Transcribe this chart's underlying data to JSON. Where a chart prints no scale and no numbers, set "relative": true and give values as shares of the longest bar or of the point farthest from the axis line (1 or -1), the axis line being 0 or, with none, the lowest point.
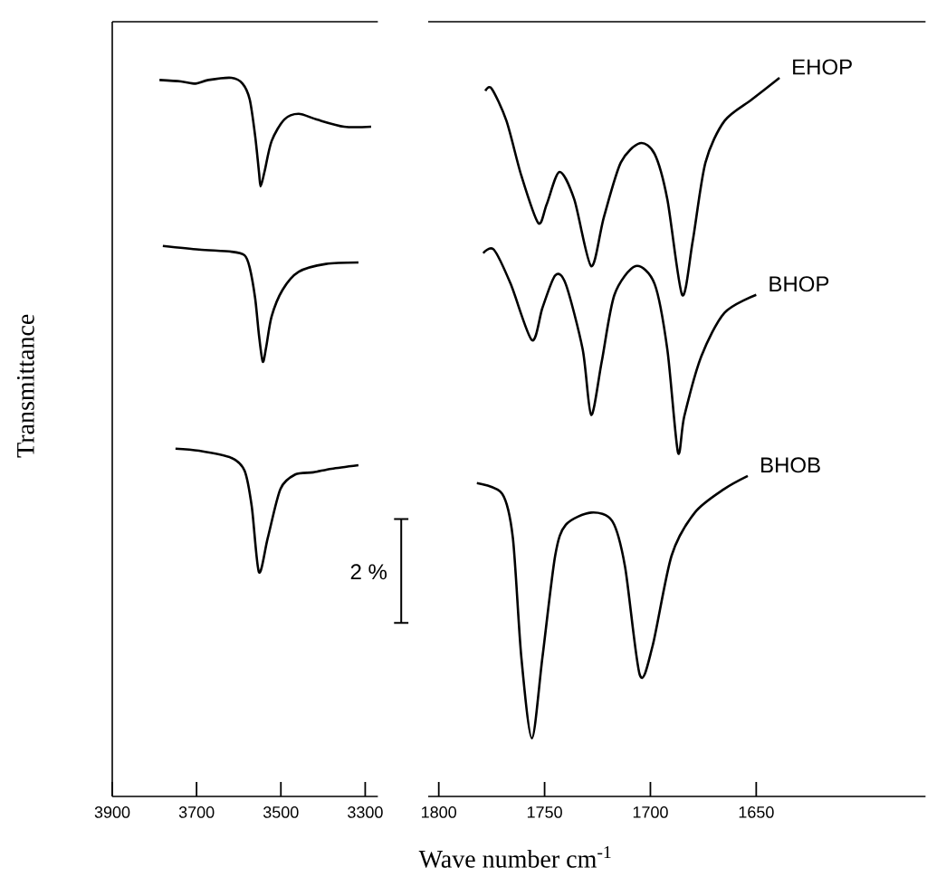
{
  "chart_data": [
    {
      "type": "line",
      "relative": true,
      "ylabel": "Transmittance",
      "xlim": [
        3900,
        3270
      ],
      "xticks": [
        3900,
        3700,
        3500,
        3300
      ],
      "annotations": [
        "2 %"
      ],
      "series": [
        {
          "color": "#000000",
          "x": [
            3788,
            3737,
            3702,
            3672,
            3617,
            3591,
            3574,
            3561,
            3552,
            3548,
            3539,
            3522,
            3492,
            3458,
            3415,
            3350,
            3286
          ],
          "values": [
            0.997,
            0.995,
            0.992,
            0.997,
            1.0,
            0.992,
            0.97,
            0.919,
            0.869,
            0.849,
            0.869,
            0.912,
            0.942,
            0.95,
            0.942,
            0.932,
            0.932
          ]
        },
        {
          "color": "#000000",
          "x": [
            3780,
            3694,
            3617,
            3586,
            3574,
            3561,
            3552,
            3543,
            3535,
            3522,
            3496,
            3458,
            3393,
            3316
          ],
          "values": [
            0.766,
            0.761,
            0.758,
            0.753,
            0.736,
            0.693,
            0.642,
            0.605,
            0.625,
            0.668,
            0.705,
            0.73,
            0.741,
            0.743
          ]
        },
        {
          "color": "#000000",
          "x": [
            3750,
            3694,
            3617,
            3586,
            3569,
            3552,
            3531,
            3501,
            3466,
            3423,
            3380,
            3316
          ],
          "values": [
            0.484,
            0.481,
            0.471,
            0.453,
            0.403,
            0.312,
            0.36,
            0.428,
            0.448,
            0.451,
            0.456,
            0.461
          ]
        }
      ]
    },
    {
      "type": "line",
      "relative": true,
      "xlabel": "Wave number cm$^{-1}$",
      "xlim": [
        1805,
        1570
      ],
      "xticks": [
        1800,
        1750,
        1700,
        1650
      ],
      "series": [
        {
          "name": "EHOP",
          "color": "#000000",
          "x": [
            1778,
            1775,
            1768,
            1761,
            1753,
            1749,
            1743,
            1736,
            1728,
            1722,
            1714,
            1705,
            1698,
            1692,
            1685,
            1680,
            1674,
            1665,
            1652,
            1639
          ],
          "values": [
            0.982,
            0.985,
            0.94,
            0.864,
            0.798,
            0.824,
            0.869,
            0.831,
            0.738,
            0.806,
            0.882,
            0.909,
            0.894,
            0.831,
            0.698,
            0.773,
            0.882,
            0.94,
            0.97,
            1.0
          ]
        },
        {
          "name": "BHOP",
          "color": "#000000",
          "x": [
            1779,
            1774,
            1766,
            1756,
            1751,
            1745,
            1740,
            1732,
            1728,
            1723,
            1717,
            1707,
            1698,
            1692,
            1687,
            1684,
            1676,
            1665,
            1650
          ],
          "values": [
            0.756,
            0.761,
            0.713,
            0.635,
            0.68,
            0.725,
            0.713,
            0.622,
            0.531,
            0.605,
            0.698,
            0.738,
            0.713,
            0.622,
            0.479,
            0.529,
            0.612,
            0.673,
            0.698
          ]
        },
        {
          "name": "BHOB",
          "color": "#000000",
          "x": [
            1782,
            1770,
            1765,
            1761,
            1756,
            1751,
            1745,
            1740,
            1728,
            1718,
            1712,
            1705,
            1699,
            1690,
            1679,
            1665,
            1654
          ],
          "values": [
            0.436,
            0.421,
            0.36,
            0.194,
            0.081,
            0.194,
            0.335,
            0.378,
            0.395,
            0.383,
            0.32,
            0.169,
            0.209,
            0.335,
            0.395,
            0.428,
            0.446
          ]
        }
      ]
    }
  ]
}
